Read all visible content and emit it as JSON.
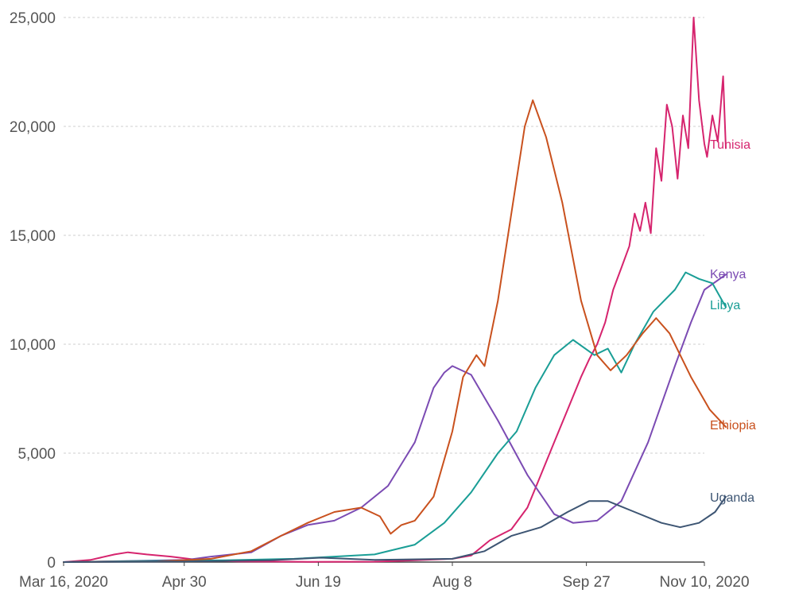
{
  "chart_data": {
    "type": "line",
    "title": "",
    "xlabel": "",
    "ylabel": "",
    "x_range": [
      "2020-03-16",
      "2020-11-10"
    ],
    "x_ticks": [
      {
        "date": "2020-03-16",
        "label": "Mar 16, 2020"
      },
      {
        "date": "2020-04-30",
        "label": "Apr 30"
      },
      {
        "date": "2020-06-19",
        "label": "Jun 19"
      },
      {
        "date": "2020-08-08",
        "label": "Aug 8"
      },
      {
        "date": "2020-09-27",
        "label": "Sep 27"
      },
      {
        "date": "2020-11-10",
        "label": "Nov 10, 2020"
      }
    ],
    "ylim": [
      0,
      25000
    ],
    "y_ticks": [
      {
        "value": 0,
        "label": "0"
      },
      {
        "value": 5000,
        "label": "5,000"
      },
      {
        "value": 10000,
        "label": "10,000"
      },
      {
        "value": 15000,
        "label": "15,000"
      },
      {
        "value": 20000,
        "label": "20,000"
      },
      {
        "value": 25000,
        "label": "25,000"
      }
    ],
    "grid": true,
    "legend": "inline labels at line ends",
    "series": [
      {
        "name": "Tunisia",
        "color": "#d6246e",
        "points": [
          [
            "2020-03-16",
            0
          ],
          [
            "2020-03-26",
            100
          ],
          [
            "2020-04-04",
            350
          ],
          [
            "2020-04-09",
            450
          ],
          [
            "2020-04-16",
            350
          ],
          [
            "2020-04-25",
            250
          ],
          [
            "2020-05-05",
            100
          ],
          [
            "2020-05-20",
            30
          ],
          [
            "2020-06-15",
            10
          ],
          [
            "2020-07-10",
            20
          ],
          [
            "2020-07-25",
            80
          ],
          [
            "2020-08-08",
            150
          ],
          [
            "2020-08-15",
            300
          ],
          [
            "2020-08-22",
            1000
          ],
          [
            "2020-08-30",
            1500
          ],
          [
            "2020-09-05",
            2500
          ],
          [
            "2020-09-10",
            4000
          ],
          [
            "2020-09-15",
            5500
          ],
          [
            "2020-09-20",
            7000
          ],
          [
            "2020-09-25",
            8500
          ],
          [
            "2020-09-28",
            9300
          ],
          [
            "2020-10-01",
            10000
          ],
          [
            "2020-10-04",
            11000
          ],
          [
            "2020-10-07",
            12500
          ],
          [
            "2020-10-10",
            13500
          ],
          [
            "2020-10-13",
            14500
          ],
          [
            "2020-10-15",
            16000
          ],
          [
            "2020-10-17",
            15200
          ],
          [
            "2020-10-19",
            16500
          ],
          [
            "2020-10-21",
            15100
          ],
          [
            "2020-10-23",
            19000
          ],
          [
            "2020-10-25",
            17500
          ],
          [
            "2020-10-27",
            21000
          ],
          [
            "2020-10-29",
            20000
          ],
          [
            "2020-10-31",
            17600
          ],
          [
            "2020-11-02",
            20500
          ],
          [
            "2020-11-04",
            19000
          ],
          [
            "2020-11-06",
            25000
          ],
          [
            "2020-11-08",
            21200
          ],
          [
            "2020-11-10",
            19200
          ],
          [
            "2020-11-11",
            18600
          ],
          [
            "2020-11-13",
            20500
          ],
          [
            "2020-11-15",
            19300
          ],
          [
            "2020-11-17",
            22300
          ],
          [
            "2020-11-18",
            19000
          ]
        ]
      },
      {
        "name": "Kenya",
        "color": "#7b4bb3",
        "points": [
          [
            "2020-03-16",
            0
          ],
          [
            "2020-04-10",
            50
          ],
          [
            "2020-05-01",
            100
          ],
          [
            "2020-05-10",
            250
          ],
          [
            "2020-05-25",
            450
          ],
          [
            "2020-06-05",
            1200
          ],
          [
            "2020-06-15",
            1700
          ],
          [
            "2020-06-25",
            1900
          ],
          [
            "2020-07-05",
            2500
          ],
          [
            "2020-07-15",
            3500
          ],
          [
            "2020-07-25",
            5500
          ],
          [
            "2020-08-01",
            8000
          ],
          [
            "2020-08-05",
            8700
          ],
          [
            "2020-08-08",
            9000
          ],
          [
            "2020-08-15",
            8600
          ],
          [
            "2020-08-25",
            6500
          ],
          [
            "2020-09-05",
            4000
          ],
          [
            "2020-09-15",
            2200
          ],
          [
            "2020-09-22",
            1800
          ],
          [
            "2020-10-01",
            1900
          ],
          [
            "2020-10-10",
            2800
          ],
          [
            "2020-10-20",
            5500
          ],
          [
            "2020-10-30",
            9000
          ],
          [
            "2020-11-05",
            11000
          ],
          [
            "2020-11-10",
            12500
          ],
          [
            "2020-11-18",
            13200
          ]
        ]
      },
      {
        "name": "Libya",
        "color": "#1a9e96",
        "points": [
          [
            "2020-03-16",
            0
          ],
          [
            "2020-04-15",
            50
          ],
          [
            "2020-05-15",
            80
          ],
          [
            "2020-06-10",
            150
          ],
          [
            "2020-06-25",
            250
          ],
          [
            "2020-07-10",
            350
          ],
          [
            "2020-07-25",
            800
          ],
          [
            "2020-08-05",
            1800
          ],
          [
            "2020-08-15",
            3200
          ],
          [
            "2020-08-25",
            5000
          ],
          [
            "2020-09-01",
            6000
          ],
          [
            "2020-09-08",
            8000
          ],
          [
            "2020-09-15",
            9500
          ],
          [
            "2020-09-22",
            10200
          ],
          [
            "2020-09-30",
            9500
          ],
          [
            "2020-10-05",
            9800
          ],
          [
            "2020-10-10",
            8700
          ],
          [
            "2020-10-15",
            10000
          ],
          [
            "2020-10-22",
            11500
          ],
          [
            "2020-10-30",
            12500
          ],
          [
            "2020-11-03",
            13300
          ],
          [
            "2020-11-08",
            13000
          ],
          [
            "2020-11-13",
            12800
          ],
          [
            "2020-11-18",
            11700
          ]
        ]
      },
      {
        "name": "Ethiopia",
        "color": "#c9511e",
        "points": [
          [
            "2020-03-16",
            0
          ],
          [
            "2020-04-20",
            30
          ],
          [
            "2020-05-10",
            150
          ],
          [
            "2020-05-25",
            500
          ],
          [
            "2020-06-05",
            1200
          ],
          [
            "2020-06-15",
            1800
          ],
          [
            "2020-06-25",
            2300
          ],
          [
            "2020-07-05",
            2500
          ],
          [
            "2020-07-12",
            2100
          ],
          [
            "2020-07-16",
            1300
          ],
          [
            "2020-07-20",
            1700
          ],
          [
            "2020-07-25",
            1900
          ],
          [
            "2020-08-01",
            3000
          ],
          [
            "2020-08-08",
            6000
          ],
          [
            "2020-08-12",
            8500
          ],
          [
            "2020-08-17",
            9500
          ],
          [
            "2020-08-20",
            9000
          ],
          [
            "2020-08-25",
            12000
          ],
          [
            "2020-08-30",
            16000
          ],
          [
            "2020-09-04",
            20000
          ],
          [
            "2020-09-07",
            21200
          ],
          [
            "2020-09-12",
            19500
          ],
          [
            "2020-09-18",
            16500
          ],
          [
            "2020-09-25",
            12000
          ],
          [
            "2020-10-01",
            9500
          ],
          [
            "2020-10-06",
            8800
          ],
          [
            "2020-10-12",
            9500
          ],
          [
            "2020-10-18",
            10500
          ],
          [
            "2020-10-23",
            11200
          ],
          [
            "2020-10-28",
            10500
          ],
          [
            "2020-11-05",
            8500
          ],
          [
            "2020-11-12",
            7000
          ],
          [
            "2020-11-18",
            6200
          ]
        ]
      },
      {
        "name": "Uganda",
        "color": "#3d5573",
        "points": [
          [
            "2020-03-16",
            0
          ],
          [
            "2020-05-01",
            30
          ],
          [
            "2020-06-01",
            80
          ],
          [
            "2020-06-20",
            200
          ],
          [
            "2020-07-10",
            100
          ],
          [
            "2020-08-08",
            150
          ],
          [
            "2020-08-20",
            500
          ],
          [
            "2020-08-30",
            1200
          ],
          [
            "2020-09-10",
            1600
          ],
          [
            "2020-09-20",
            2300
          ],
          [
            "2020-09-28",
            2800
          ],
          [
            "2020-10-05",
            2800
          ],
          [
            "2020-10-15",
            2300
          ],
          [
            "2020-10-25",
            1800
          ],
          [
            "2020-11-01",
            1600
          ],
          [
            "2020-11-08",
            1800
          ],
          [
            "2020-11-14",
            2300
          ],
          [
            "2020-11-18",
            3000
          ]
        ]
      }
    ]
  }
}
